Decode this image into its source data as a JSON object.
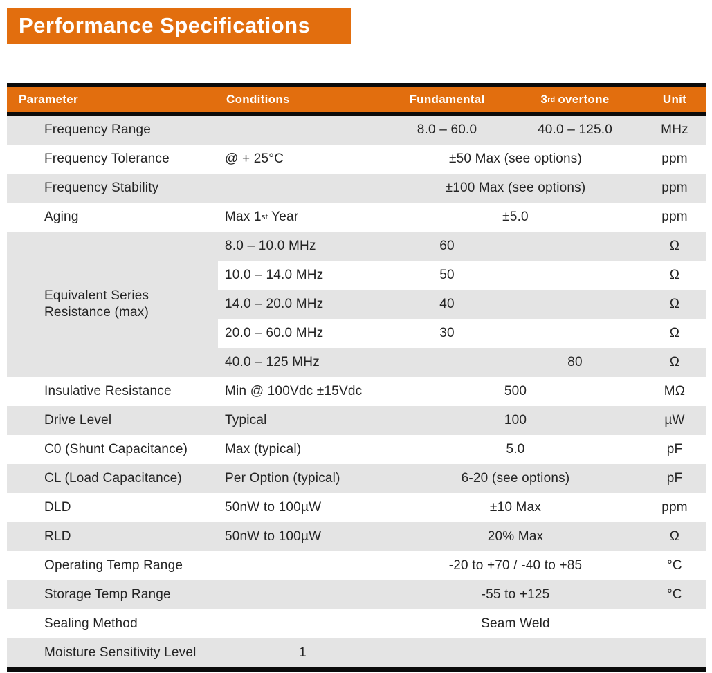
{
  "title_banner": {
    "text": "Performance Specifications"
  },
  "colors": {
    "accent_orange": "#E26E0E",
    "row_gray": "#E4E4E4",
    "bar_black": "#0B0B0B",
    "header_text": "#FFFFFF",
    "body_text": "#242424"
  },
  "table": {
    "header": {
      "parameter": "Parameter",
      "conditions": "Conditions",
      "fundamental": "Fundamental",
      "overtone": {
        "base": "3",
        "sup": "rd",
        "rest": "overtone"
      },
      "unit": "Unit"
    },
    "esr_group": {
      "label_line1": "Equivalent Series",
      "label_line2": "Resistance (max)"
    },
    "rows": [
      {
        "shade": "gray",
        "parameter": "Frequency Range",
        "conditions": "",
        "fundamental": "8.0 – 60.0",
        "overtone": "40.0 – 125.0",
        "unit": "MHz"
      },
      {
        "shade": "white",
        "parameter": "Frequency Tolerance",
        "conditions": "@ + 25°C",
        "combined": "±50 Max (see options)",
        "unit": "ppm"
      },
      {
        "shade": "gray",
        "parameter": "Frequency Stability",
        "conditions": "",
        "combined": "±100 Max (see options)",
        "unit": "ppm"
      },
      {
        "shade": "white",
        "parameter": "Aging",
        "conditions_parts": [
          {
            "text": "Max 1"
          },
          {
            "sup": "st"
          },
          {
            "text": " Year"
          }
        ],
        "combined": "±5.0",
        "unit": "ppm"
      },
      {
        "shade": "gray",
        "group": "esr",
        "conditions": "8.0 – 10.0 MHz",
        "fundamental": "60",
        "overtone": "",
        "unit": "Ω"
      },
      {
        "shade": "white",
        "group": "esr",
        "conditions": "10.0 – 14.0 MHz",
        "fundamental": "50",
        "overtone": "",
        "unit": "Ω"
      },
      {
        "shade": "gray",
        "group": "esr",
        "conditions": "14.0 – 20.0 MHz",
        "fundamental": "40",
        "overtone": "",
        "unit": "Ω"
      },
      {
        "shade": "white",
        "group": "esr",
        "conditions": "20.0 – 60.0 MHz",
        "fundamental": "30",
        "overtone": "",
        "unit": "Ω"
      },
      {
        "shade": "gray",
        "group": "esr",
        "conditions": "40.0 – 125 MHz",
        "fundamental": "",
        "overtone": "80",
        "unit": "Ω"
      },
      {
        "shade": "white",
        "parameter": "Insulative Resistance",
        "conditions": "Min @ 100Vdc ±15Vdc",
        "combined": "500",
        "unit": "MΩ"
      },
      {
        "shade": "gray",
        "parameter": "Drive Level",
        "conditions": "Typical",
        "combined": "100",
        "unit": "µW"
      },
      {
        "shade": "white",
        "parameter": "C0 (Shunt Capacitance)",
        "conditions": "Max (typical)",
        "combined": "5.0",
        "unit": "pF"
      },
      {
        "shade": "gray",
        "parameter": "CL (Load Capacitance)",
        "conditions": "Per Option (typical)",
        "combined": "6-20 (see options)",
        "unit": "pF"
      },
      {
        "shade": "white",
        "parameter": "DLD",
        "conditions": "50nW to 100µW",
        "combined": "±10 Max",
        "unit": "ppm"
      },
      {
        "shade": "gray",
        "parameter": "RLD",
        "conditions": "50nW to 100µW",
        "combined": "20% Max",
        "unit": "Ω"
      },
      {
        "shade": "white",
        "parameter": "Operating Temp Range",
        "conditions": "",
        "combined": "-20 to +70 / -40 to +85",
        "unit": "°C"
      },
      {
        "shade": "gray",
        "parameter": "Storage Temp Range",
        "conditions": "",
        "combined": "-55 to +125",
        "unit": "°C"
      },
      {
        "shade": "white",
        "parameter": "Sealing Method",
        "conditions": "",
        "combined": "Seam Weld",
        "unit": ""
      },
      {
        "shade": "gray",
        "parameter": "Moisture Sensitivity Level",
        "conditions_centered": "1",
        "fundamental": "",
        "overtone": "",
        "unit": ""
      }
    ]
  }
}
